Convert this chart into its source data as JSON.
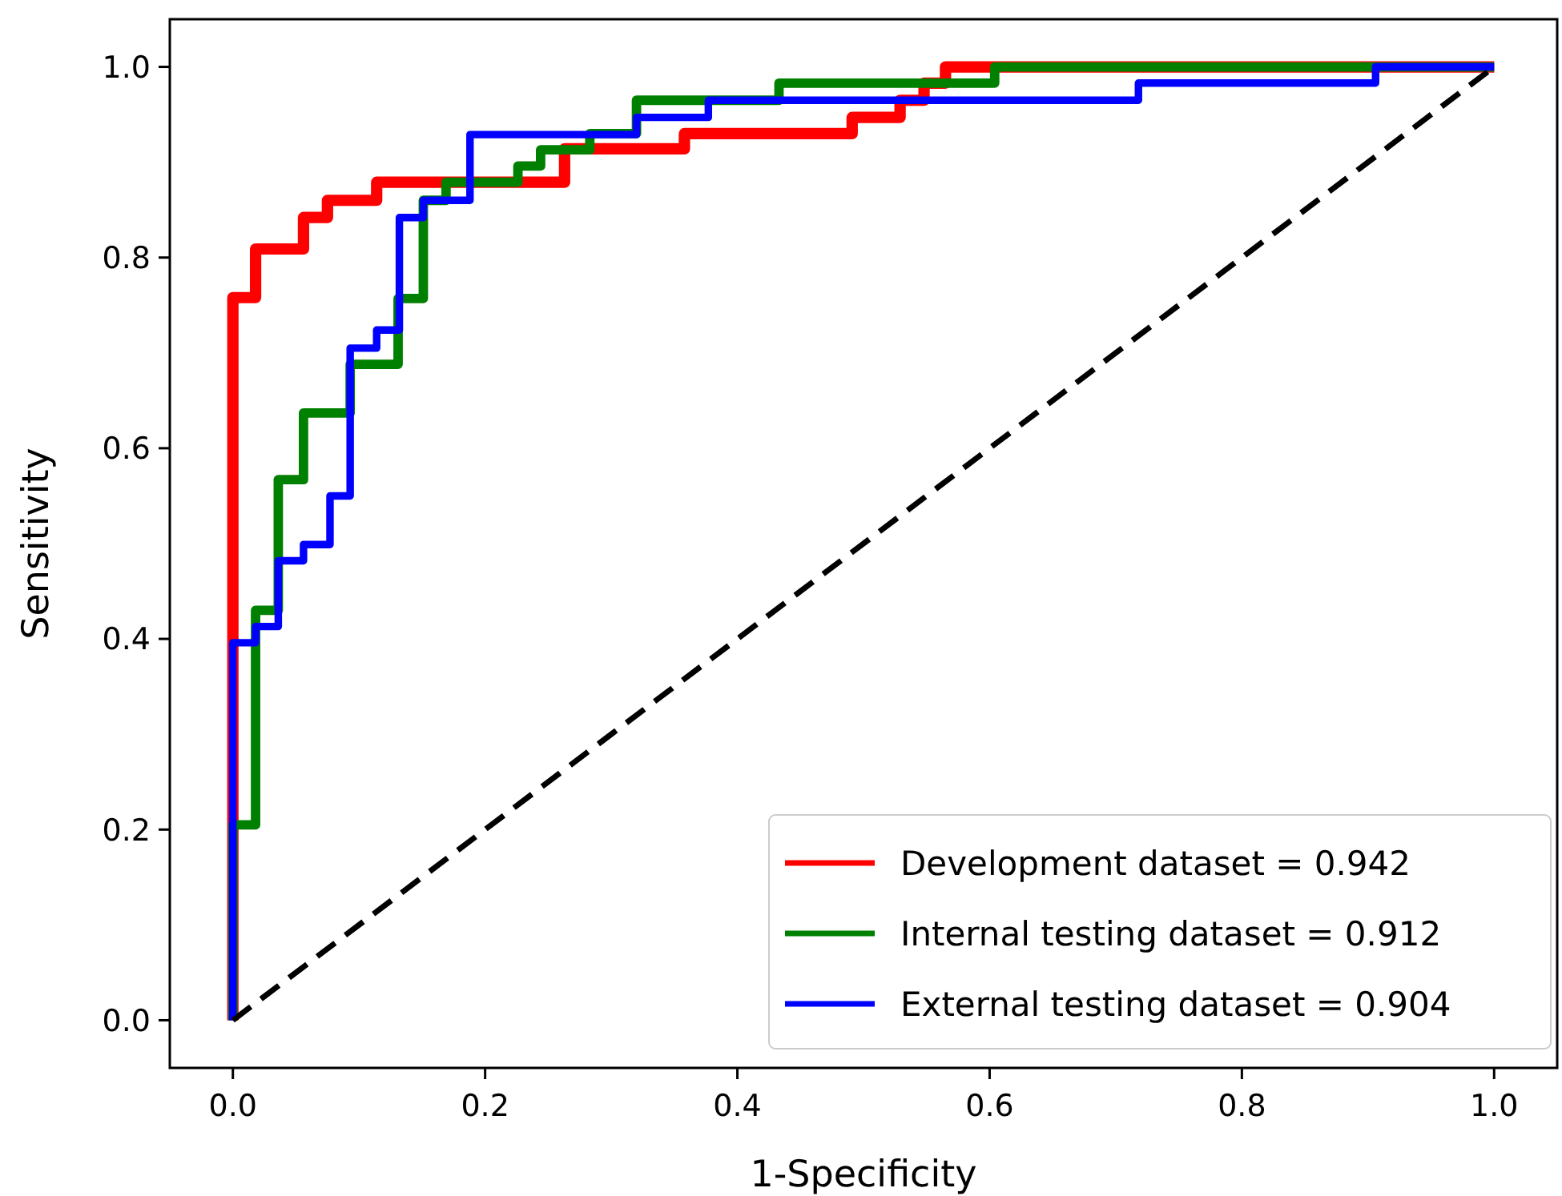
{
  "chart_data": {
    "type": "step",
    "xlabel": "1-Specificity",
    "ylabel": "Sensitivity",
    "xlim": [
      -0.05,
      1.05
    ],
    "ylim": [
      -0.05,
      1.05
    ],
    "xticks": [
      {
        "value": 0,
        "label": "0.0"
      },
      {
        "value": 0.2,
        "label": "0.2"
      },
      {
        "value": 0.4,
        "label": "0.4"
      },
      {
        "value": 0.6,
        "label": "0.6"
      },
      {
        "value": 0.8,
        "label": "0.8"
      },
      {
        "value": 1,
        "label": "1.0"
      }
    ],
    "yticks": [
      {
        "value": 0,
        "label": "0.0"
      },
      {
        "value": 0.2,
        "label": "0.2"
      },
      {
        "value": 0.4,
        "label": "0.4"
      },
      {
        "value": 0.6,
        "label": "0.6"
      },
      {
        "value": 0.8,
        "label": "0.8"
      },
      {
        "value": 1,
        "label": "1.0"
      }
    ],
    "grid": false,
    "legend": "bottom right",
    "marker": "none",
    "line_style": "solid",
    "series": [
      {
        "name": "Development dataset = 0.942",
        "color": "#ff0000",
        "x": [
          0,
          0,
          0.018,
          0.056,
          0.075,
          0.114,
          0.263,
          0.358,
          0.491,
          0.529,
          0.548,
          0.565,
          1
        ],
        "values": [
          0,
          0.758,
          0.809,
          0.842,
          0.86,
          0.879,
          0.914,
          0.93,
          0.947,
          0.965,
          0.983,
          1,
          1
        ]
      },
      {
        "name": "Internal testing dataset = 0.912",
        "color": "#008000",
        "x": [
          0,
          0,
          0.018,
          0.036,
          0.056,
          0.093,
          0.131,
          0.151,
          0.169,
          0.226,
          0.244,
          0.283,
          0.32,
          0.433,
          0.604,
          1
        ],
        "values": [
          0,
          0.205,
          0.43,
          0.567,
          0.637,
          0.688,
          0.757,
          0.86,
          0.879,
          0.896,
          0.913,
          0.93,
          0.965,
          0.983,
          1,
          1
        ]
      },
      {
        "name": "External testing dataset = 0.904",
        "color": "#0000ff",
        "x": [
          0,
          0,
          0.018,
          0.036,
          0.056,
          0.077,
          0.093,
          0.114,
          0.132,
          0.151,
          0.188,
          0.32,
          0.377,
          0.718,
          0.906,
          1
        ],
        "values": [
          0,
          0.396,
          0.413,
          0.482,
          0.499,
          0.55,
          0.705,
          0.724,
          0.842,
          0.86,
          0.929,
          0.947,
          0.965,
          0.983,
          1,
          1
        ]
      },
      {
        "type": "line",
        "color": "#000000",
        "line_style": "dashed",
        "x": [
          0,
          1
        ],
        "values": [
          0,
          1
        ]
      }
    ]
  }
}
